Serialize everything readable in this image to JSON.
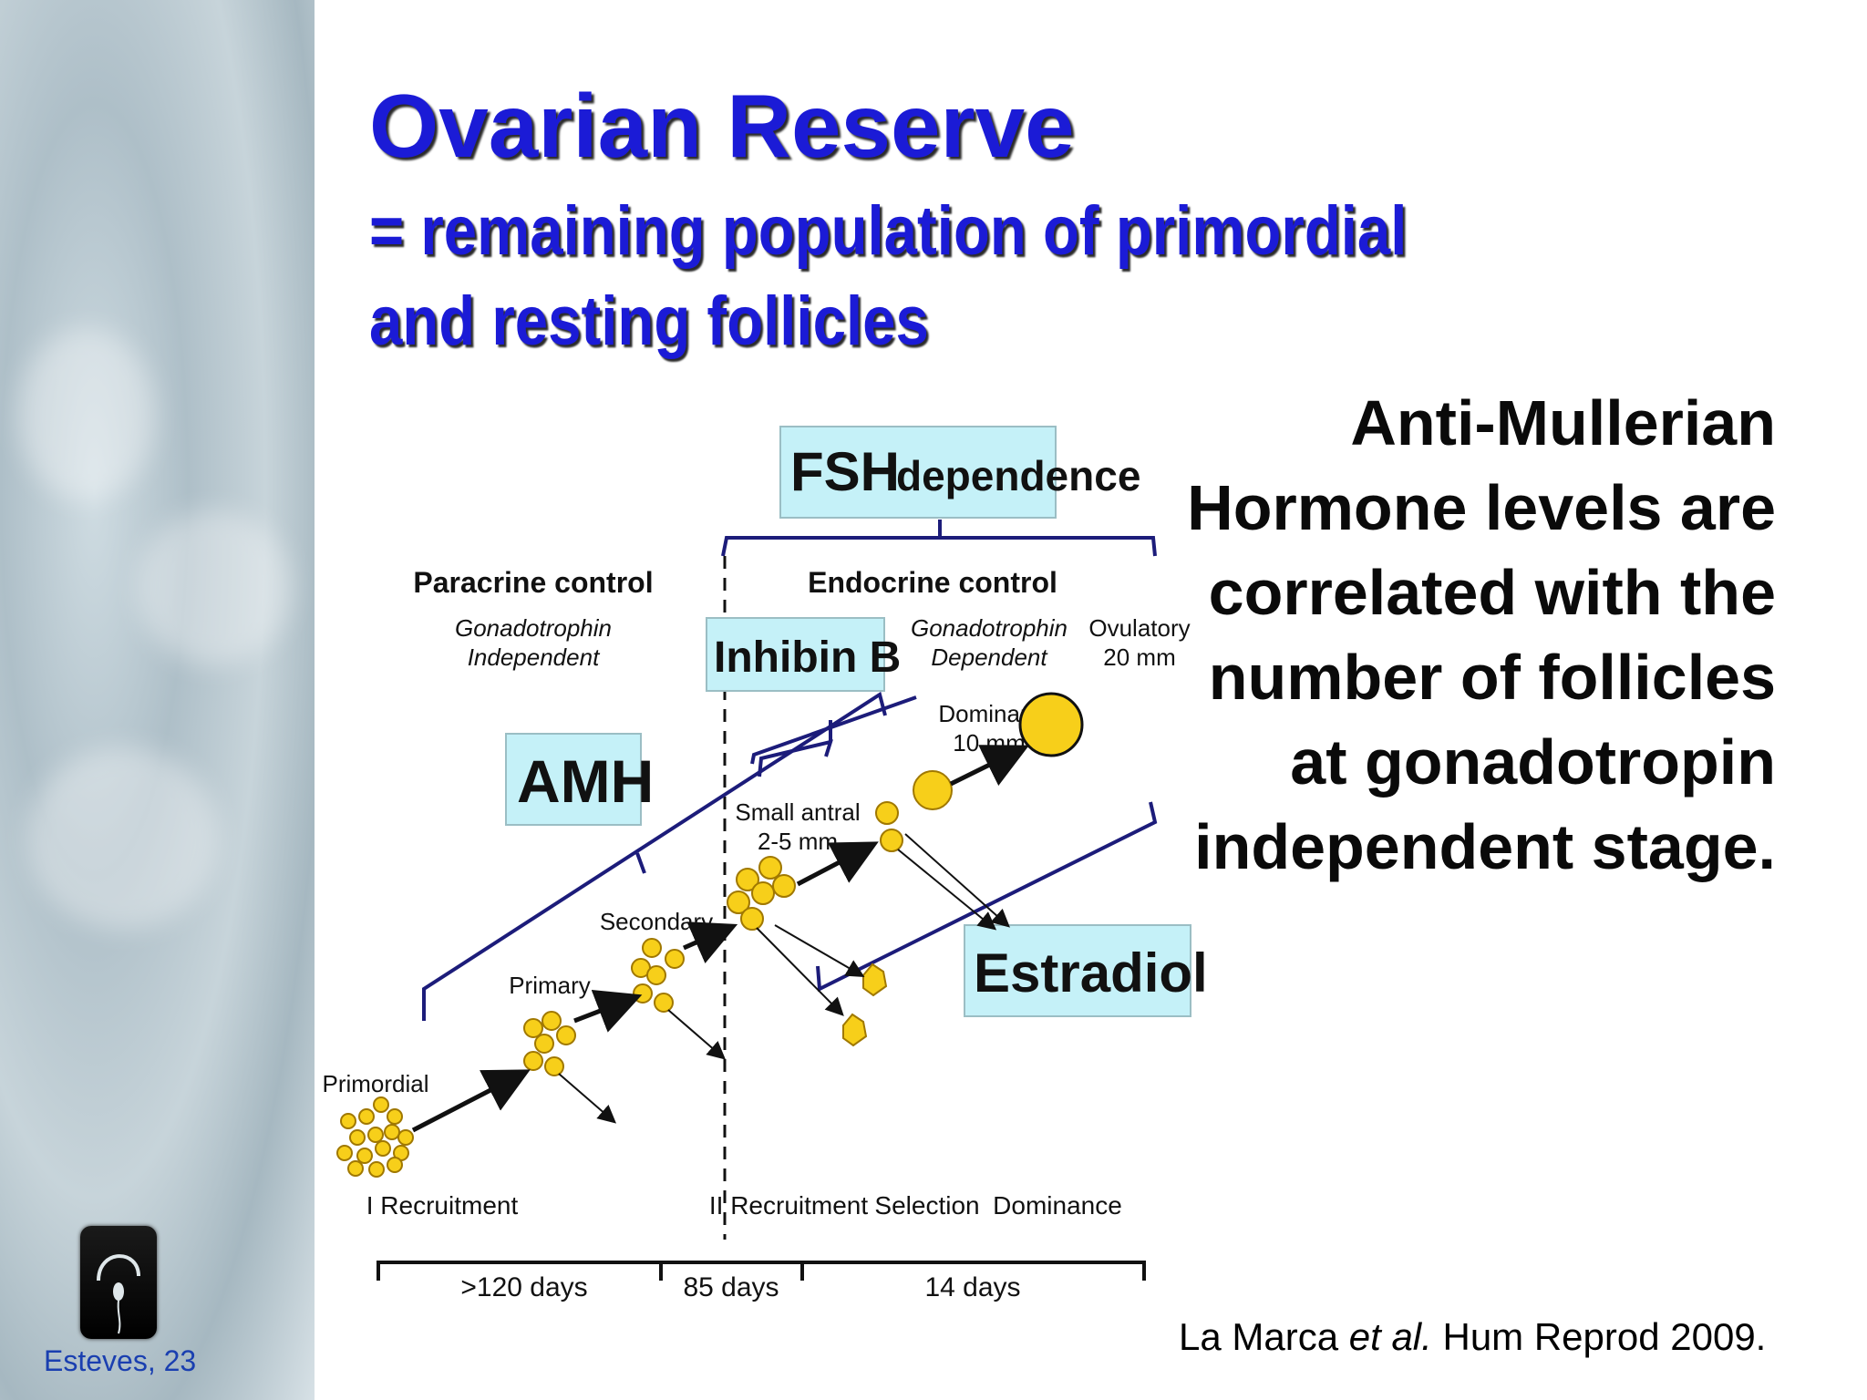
{
  "slide": {
    "title": "Ovarian Reserve",
    "subtitle": "= remaining population of primordial and resting follicles",
    "side_text": "Anti-Mullerian Hormone levels are correlated with the number of follicles at gonadotropin independent stage.",
    "citation": {
      "authors": "La Marca",
      "etal": "et al.",
      "journal": "Hum Reprod 2009."
    },
    "footer": "Esteves, 23"
  },
  "diagram": {
    "fsh_box": "FSH",
    "fsh_box_small": "dependence",
    "paracrine_heading": "Paracrine control",
    "paracrine_sub1": "Gonadotrophin",
    "paracrine_sub2": "Independent",
    "endocrine_heading": "Endocrine control",
    "endocrine_sub1": "Gonadotrophin",
    "endocrine_sub2": "Dependent",
    "ovulatory1": "Ovulatory",
    "ovulatory2": "20 mm",
    "inhibin_box": "Inhibin B",
    "amh_box": "AMH",
    "estradiol_box": "Estradiol",
    "dominant1": "Dominant",
    "dominant2": "10 mm",
    "small_antral1": "Small antral",
    "small_antral2": "2-5 mm",
    "secondary": "Secondary",
    "primary": "Primary",
    "primordial": "Primordial",
    "recruitment1": "I Recruitment",
    "recruitment2": "II Recruitment",
    "selection": "Selection",
    "dominance": "Dominance",
    "days1": ">120 days",
    "days2": "85 days",
    "days3": "14 days"
  },
  "colors": {
    "title": "#1b1bd6",
    "label_box": "#c5f1f8",
    "follicle": "#f7cf1a",
    "follicle_stroke": "#a07800",
    "bracket": "#1c1c7a"
  }
}
